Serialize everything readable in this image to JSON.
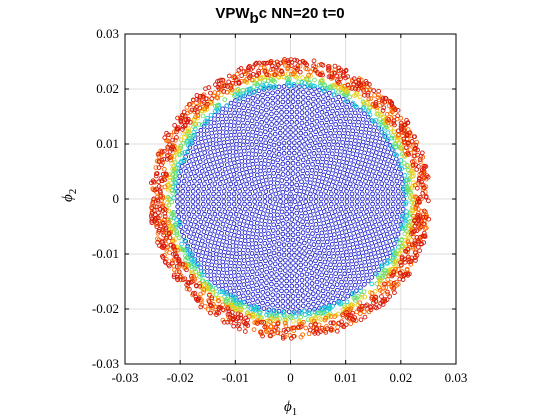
{
  "chart_data": {
    "type": "scatter",
    "title": {
      "base": "VPW",
      "sub": "b",
      "rest": "c NN=20 t=0"
    },
    "xlabel": {
      "symbol": "ϕ",
      "sub": "1"
    },
    "ylabel": {
      "symbol": "ϕ",
      "sub": "2"
    },
    "xlim": [
      -0.03,
      0.03
    ],
    "ylim": [
      -0.03,
      0.03
    ],
    "xticks": [
      -0.03,
      -0.02,
      -0.01,
      0,
      0.01,
      0.02,
      0.03
    ],
    "yticks": [
      -0.03,
      -0.02,
      -0.01,
      0,
      0.01,
      0.02,
      0.03
    ],
    "xtick_labels": [
      "-0.03",
      "-0.02",
      "-0.01",
      "0",
      "0.01",
      "0.02",
      "0.03"
    ],
    "ytick_labels": [
      "-0.03",
      "-0.02",
      "-0.01",
      "0",
      "0.01",
      "0.02",
      "0.03"
    ],
    "grid": true,
    "marker": "open-circle",
    "series": [
      {
        "values": {
          "shape": "filled-disk-grid",
          "center": [
            0,
            0
          ],
          "max_radius": 0.0205
        },
        "color": "#1f1fd0"
      },
      {
        "values": {
          "shape": "ring",
          "center": [
            0,
            0
          ],
          "radius_range": [
            0.0205,
            0.0215
          ]
        },
        "color": "#1fc8d8"
      },
      {
        "values": {
          "shape": "ring",
          "center": [
            0,
            0
          ],
          "radius_range": [
            0.0213,
            0.0222
          ]
        },
        "color": "#6fe06a"
      },
      {
        "values": {
          "shape": "ring",
          "center": [
            0,
            0
          ],
          "radius_range": [
            0.022,
            0.0228
          ]
        },
        "color": "#e8d020"
      },
      {
        "values": {
          "shape": "ring",
          "center": [
            0,
            0
          ],
          "radius_range": [
            0.0225,
            0.0252
          ]
        },
        "color": "#ff6a00"
      },
      {
        "values": {
          "shape": "ring",
          "center": [
            0,
            0
          ],
          "radius_range": [
            0.0228,
            0.0255
          ]
        },
        "color": "#d81a0a"
      }
    ]
  }
}
